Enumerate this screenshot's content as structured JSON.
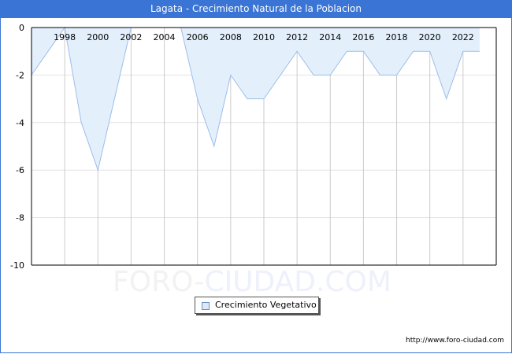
{
  "header": {
    "title": "Lagata - Crecimiento Natural de la Poblacion"
  },
  "legend": {
    "label": "Crecimiento Vegetativo",
    "swatch_color": "#dce9fa"
  },
  "watermark": {
    "text_part1": "FORO-",
    "text_part2": "CIUDAD.COM"
  },
  "footer": {
    "url": "http://www.foro-ciudad.com"
  },
  "colors": {
    "title_bg": "#3a74d4",
    "area_fill": "#e3f0fc",
    "line": "#9dbde9",
    "grid": "#cccccc"
  },
  "chart_data": {
    "type": "area",
    "title": "Lagata - Crecimiento Natural de la Poblacion",
    "xlabel": "",
    "ylabel": "",
    "x": [
      1996,
      1997,
      1998,
      1999,
      2000,
      2001,
      2002,
      2003,
      2004,
      2005,
      2006,
      2007,
      2008,
      2009,
      2010,
      2011,
      2012,
      2013,
      2014,
      2015,
      2016,
      2017,
      2018,
      2019,
      2020,
      2021,
      2022,
      2023
    ],
    "series": [
      {
        "name": "Crecimiento Vegetativo",
        "values": [
          -2,
          -1,
          0,
          -4,
          -6,
          -3,
          0,
          0,
          0,
          0,
          -3,
          -5,
          -2,
          -3,
          -3,
          -2,
          -1,
          -2,
          -2,
          -1,
          -1,
          -2,
          -2,
          -1,
          -1,
          -3,
          -1,
          -1
        ]
      }
    ],
    "ylim": [
      -10,
      0
    ],
    "yticks": [
      0,
      -2,
      -4,
      -6,
      -8,
      -10
    ],
    "xticks": [
      1998,
      2000,
      2002,
      2004,
      2006,
      2008,
      2010,
      2012,
      2014,
      2016,
      2018,
      2020,
      2022
    ],
    "grid": true,
    "legend_position": "bottom-center"
  }
}
